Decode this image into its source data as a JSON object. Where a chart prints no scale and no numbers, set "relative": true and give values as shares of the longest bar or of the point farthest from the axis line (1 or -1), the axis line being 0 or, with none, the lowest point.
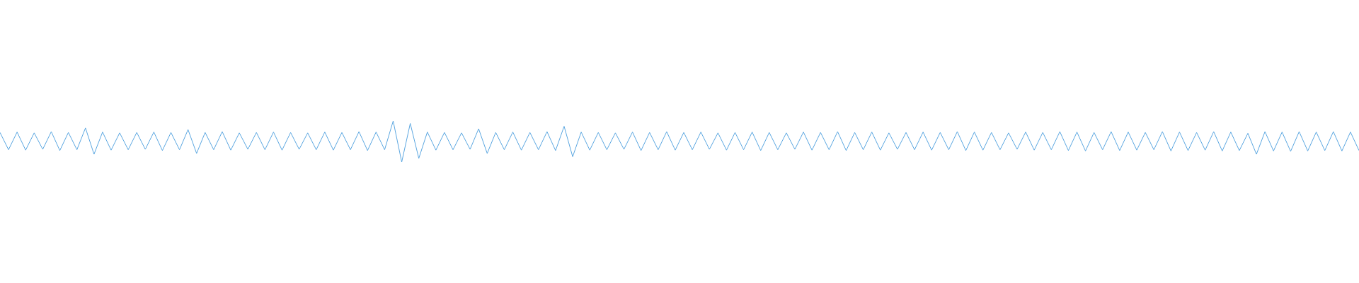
{
  "chart_data": {
    "type": "line",
    "relative": true,
    "grid": false,
    "marker": "none",
    "line_style": "solid",
    "categories": [
      null,
      null,
      null,
      null,
      null,
      null,
      null,
      null,
      null,
      null,
      null,
      null,
      null,
      null,
      null,
      null,
      null,
      null,
      null,
      null,
      null,
      null,
      null,
      null,
      null,
      null,
      null,
      null,
      null,
      null,
      null,
      null,
      null,
      null,
      null,
      null,
      null,
      null,
      null,
      null,
      null,
      null,
      null,
      null,
      null,
      null,
      null,
      null,
      null,
      null,
      null,
      null,
      null,
      null,
      null,
      null,
      null,
      null,
      null,
      null,
      null,
      null,
      null,
      null,
      null,
      null,
      null,
      null,
      null,
      null,
      null,
      null,
      null,
      null,
      null,
      null,
      null,
      null,
      null,
      null,
      null,
      null,
      null,
      null,
      null,
      null,
      null,
      null,
      null,
      null,
      null,
      null,
      null,
      null,
      null,
      null,
      null,
      null,
      null,
      null,
      null,
      null,
      null,
      null,
      null,
      null,
      null,
      null,
      null,
      null,
      null,
      null,
      null,
      null,
      null,
      null,
      null,
      null,
      null,
      null,
      null,
      null,
      null,
      null,
      null,
      null,
      null,
      null,
      null,
      null,
      null,
      null,
      null,
      null,
      null,
      null,
      null,
      null,
      null,
      null,
      null,
      null,
      null,
      null,
      null,
      null,
      null,
      null,
      null,
      null,
      null,
      null,
      null,
      null,
      null,
      null,
      null,
      null,
      null,
      null
    ],
    "series": [
      {
        "color": "#5aa6e0",
        "values": [
          0.72,
          0.3,
          0.73,
          0.29,
          0.71,
          0.31,
          0.74,
          0.28,
          0.72,
          0.3,
          0.83,
          0.19,
          0.73,
          0.29,
          0.71,
          0.3,
          0.72,
          0.31,
          0.73,
          0.28,
          0.72,
          0.3,
          0.79,
          0.21,
          0.72,
          0.3,
          0.74,
          0.29,
          0.71,
          0.31,
          0.72,
          0.3,
          0.73,
          0.29,
          0.72,
          0.31,
          0.71,
          0.3,
          0.73,
          0.29,
          0.72,
          0.3,
          0.74,
          0.28,
          0.73,
          0.3,
          1.0,
          0.0,
          0.94,
          0.09,
          0.73,
          0.29,
          0.72,
          0.3,
          0.71,
          0.31,
          0.81,
          0.21,
          0.72,
          0.3,
          0.73,
          0.29,
          0.72,
          0.3,
          0.74,
          0.28,
          0.87,
          0.13,
          0.73,
          0.29,
          0.72,
          0.3,
          0.71,
          0.31,
          0.73,
          0.28,
          0.72,
          0.3,
          0.74,
          0.29,
          0.72,
          0.3,
          0.73,
          0.31,
          0.71,
          0.29,
          0.72,
          0.3,
          0.73,
          0.28,
          0.72,
          0.3,
          0.71,
          0.31,
          0.73,
          0.29,
          0.72,
          0.3,
          0.74,
          0.28,
          0.72,
          0.3,
          0.73,
          0.29,
          0.71,
          0.31,
          0.72,
          0.3,
          0.73,
          0.29,
          0.72,
          0.3,
          0.74,
          0.28,
          0.73,
          0.29,
          0.72,
          0.3,
          0.71,
          0.31,
          0.73,
          0.29,
          0.72,
          0.3,
          0.74,
          0.28,
          0.73,
          0.27,
          0.72,
          0.3,
          0.74,
          0.28,
          0.73,
          0.29,
          0.72,
          0.3,
          0.74,
          0.27,
          0.73,
          0.28,
          0.72,
          0.29,
          0.74,
          0.27,
          0.73,
          0.28,
          0.7,
          0.19,
          0.74,
          0.27,
          0.73,
          0.26,
          0.74,
          0.27,
          0.73,
          0.28,
          0.74,
          0.27,
          0.73,
          0.28
        ]
      }
    ]
  }
}
